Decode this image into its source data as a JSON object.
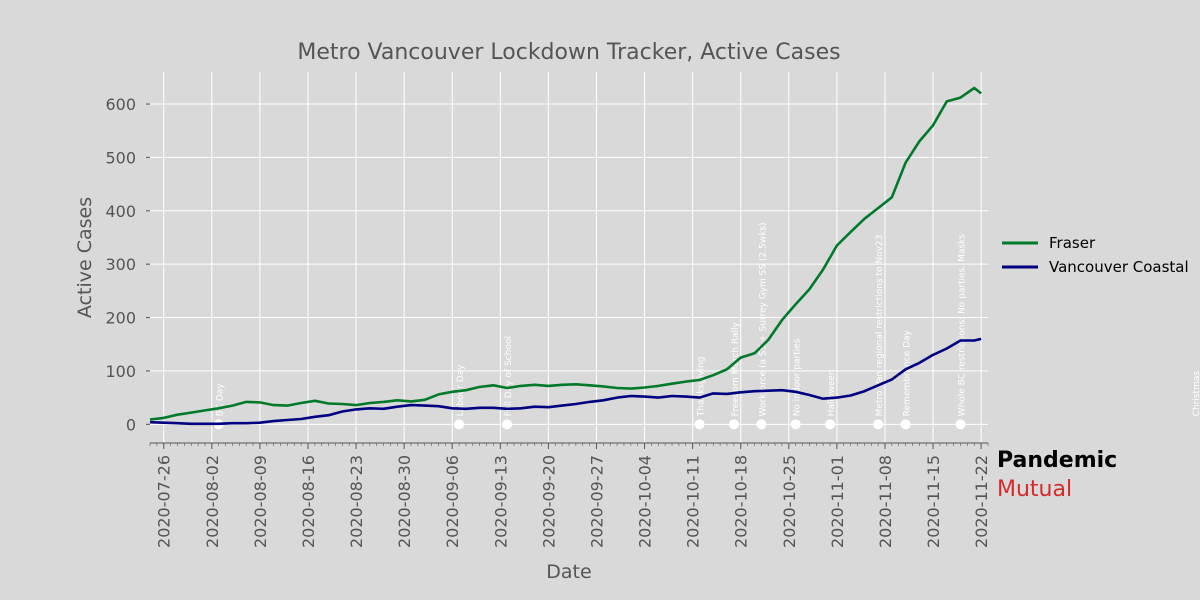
{
  "chart_data": {
    "type": "line",
    "title": "Metro Vancouver Lockdown Tracker, Active Cases",
    "xlabel": "Date",
    "ylabel": "Active Cases",
    "x_start": "2020-07-24",
    "x_end": "2020-11-23",
    "xticks": [
      "2020-07-26",
      "2020-08-02",
      "2020-08-09",
      "2020-08-16",
      "2020-08-23",
      "2020-08-30",
      "2020-09-06",
      "2020-09-13",
      "2020-09-20",
      "2020-09-27",
      "2020-10-04",
      "2020-10-11",
      "2020-10-18",
      "2020-10-25",
      "2020-11-01",
      "2020-11-08",
      "2020-11-15",
      "2020-11-22"
    ],
    "yticks": [
      0,
      100,
      200,
      300,
      400,
      500,
      600
    ],
    "ylim": [
      -35,
      660
    ],
    "grid": true,
    "legend_position": "right",
    "series": [
      {
        "name": "Fraser",
        "color": "#007a2a",
        "points": [
          [
            "2020-07-24",
            9
          ],
          [
            "2020-07-26",
            12
          ],
          [
            "2020-07-28",
            18
          ],
          [
            "2020-07-30",
            22
          ],
          [
            "2020-08-01",
            26
          ],
          [
            "2020-08-03",
            30
          ],
          [
            "2020-08-05",
            35
          ],
          [
            "2020-08-07",
            42
          ],
          [
            "2020-08-09",
            41
          ],
          [
            "2020-08-11",
            36
          ],
          [
            "2020-08-13",
            35
          ],
          [
            "2020-08-15",
            40
          ],
          [
            "2020-08-17",
            44
          ],
          [
            "2020-08-19",
            39
          ],
          [
            "2020-08-21",
            38
          ],
          [
            "2020-08-23",
            36
          ],
          [
            "2020-08-25",
            40
          ],
          [
            "2020-08-27",
            42
          ],
          [
            "2020-08-29",
            45
          ],
          [
            "2020-08-31",
            43
          ],
          [
            "2020-09-02",
            46
          ],
          [
            "2020-09-04",
            56
          ],
          [
            "2020-09-06",
            61
          ],
          [
            "2020-09-08",
            64
          ],
          [
            "2020-09-10",
            70
          ],
          [
            "2020-09-12",
            73
          ],
          [
            "2020-09-14",
            68
          ],
          [
            "2020-09-16",
            72
          ],
          [
            "2020-09-18",
            74
          ],
          [
            "2020-09-20",
            72
          ],
          [
            "2020-09-22",
            74
          ],
          [
            "2020-09-24",
            75
          ],
          [
            "2020-09-26",
            73
          ],
          [
            "2020-09-28",
            71
          ],
          [
            "2020-09-30",
            68
          ],
          [
            "2020-10-02",
            67
          ],
          [
            "2020-10-04",
            69
          ],
          [
            "2020-10-06",
            72
          ],
          [
            "2020-10-08",
            76
          ],
          [
            "2020-10-10",
            80
          ],
          [
            "2020-10-12",
            83
          ],
          [
            "2020-10-14",
            92
          ],
          [
            "2020-10-16",
            103
          ],
          [
            "2020-10-18",
            125
          ],
          [
            "2020-10-20",
            133
          ],
          [
            "2020-10-22",
            158
          ],
          [
            "2020-10-24",
            195
          ],
          [
            "2020-10-26",
            225
          ],
          [
            "2020-10-28",
            253
          ],
          [
            "2020-10-30",
            290
          ],
          [
            "2020-11-01",
            335
          ],
          [
            "2020-11-03",
            360
          ],
          [
            "2020-11-05",
            385
          ],
          [
            "2020-11-07",
            405
          ],
          [
            "2020-11-09",
            425
          ],
          [
            "2020-11-11",
            490
          ],
          [
            "2020-11-13",
            530
          ],
          [
            "2020-11-15",
            560
          ],
          [
            "2020-11-17",
            605
          ],
          [
            "2020-11-19",
            612
          ],
          [
            "2020-11-21",
            630
          ],
          [
            "2020-11-22",
            620
          ]
        ]
      },
      {
        "name": "Vancouver Coastal",
        "color": "#000080",
        "points": [
          [
            "2020-07-24",
            4
          ],
          [
            "2020-07-26",
            3
          ],
          [
            "2020-07-28",
            2
          ],
          [
            "2020-07-30",
            1
          ],
          [
            "2020-08-01",
            1
          ],
          [
            "2020-08-03",
            1
          ],
          [
            "2020-08-05",
            2
          ],
          [
            "2020-08-07",
            2
          ],
          [
            "2020-08-09",
            3
          ],
          [
            "2020-08-11",
            6
          ],
          [
            "2020-08-13",
            8
          ],
          [
            "2020-08-15",
            10
          ],
          [
            "2020-08-17",
            14
          ],
          [
            "2020-08-19",
            17
          ],
          [
            "2020-08-21",
            24
          ],
          [
            "2020-08-23",
            28
          ],
          [
            "2020-08-25",
            30
          ],
          [
            "2020-08-27",
            29
          ],
          [
            "2020-08-29",
            33
          ],
          [
            "2020-08-31",
            36
          ],
          [
            "2020-09-02",
            35
          ],
          [
            "2020-09-04",
            34
          ],
          [
            "2020-09-06",
            30
          ],
          [
            "2020-09-08",
            29
          ],
          [
            "2020-09-10",
            31
          ],
          [
            "2020-09-12",
            31
          ],
          [
            "2020-09-14",
            29
          ],
          [
            "2020-09-16",
            30
          ],
          [
            "2020-09-18",
            33
          ],
          [
            "2020-09-20",
            32
          ],
          [
            "2020-09-22",
            35
          ],
          [
            "2020-09-24",
            38
          ],
          [
            "2020-09-26",
            42
          ],
          [
            "2020-09-28",
            45
          ],
          [
            "2020-09-30",
            50
          ],
          [
            "2020-10-02",
            53
          ],
          [
            "2020-10-04",
            52
          ],
          [
            "2020-10-06",
            50
          ],
          [
            "2020-10-08",
            53
          ],
          [
            "2020-10-10",
            52
          ],
          [
            "2020-10-12",
            50
          ],
          [
            "2020-10-14",
            58
          ],
          [
            "2020-10-16",
            57
          ],
          [
            "2020-10-18",
            60
          ],
          [
            "2020-10-20",
            62
          ],
          [
            "2020-10-22",
            63
          ],
          [
            "2020-10-24",
            64
          ],
          [
            "2020-10-26",
            61
          ],
          [
            "2020-10-28",
            55
          ],
          [
            "2020-10-30",
            48
          ],
          [
            "2020-11-01",
            50
          ],
          [
            "2020-11-03",
            54
          ],
          [
            "2020-11-05",
            62
          ],
          [
            "2020-11-07",
            73
          ],
          [
            "2020-11-09",
            84
          ],
          [
            "2020-11-11",
            103
          ],
          [
            "2020-11-13",
            115
          ],
          [
            "2020-11-15",
            130
          ],
          [
            "2020-11-17",
            142
          ],
          [
            "2020-11-19",
            157
          ],
          [
            "2020-11-21",
            157
          ],
          [
            "2020-11-22",
            160
          ]
        ]
      }
    ],
    "events": [
      {
        "date": "2020-08-03",
        "label": "BC Day"
      },
      {
        "date": "2020-09-07",
        "label": "Labour Day"
      },
      {
        "date": "2020-09-14",
        "label": "Full Day of School"
      },
      {
        "date": "2020-10-12",
        "label": "Thanksgiving"
      },
      {
        "date": "2020-10-17",
        "label": "Freedom March Rally"
      },
      {
        "date": "2020-10-21",
        "label": "Workforce (a SS + Surrey Gym SS (2.5wks)"
      },
      {
        "date": "2020-10-26",
        "label": "No indoor parties"
      },
      {
        "date": "2020-10-31",
        "label": "Halloween"
      },
      {
        "date": "2020-11-07",
        "label": "Metro Van regional restrictions to Nov23"
      },
      {
        "date": "2020-11-11",
        "label": "Remembrance Day"
      },
      {
        "date": "2020-11-19",
        "label": "Whole BC restrictions: No parties. Masks"
      },
      {
        "date": "2020-12-25",
        "label": "Christmas"
      }
    ]
  },
  "branding": {
    "line1": "Pandemic",
    "line2": "Mutual"
  }
}
